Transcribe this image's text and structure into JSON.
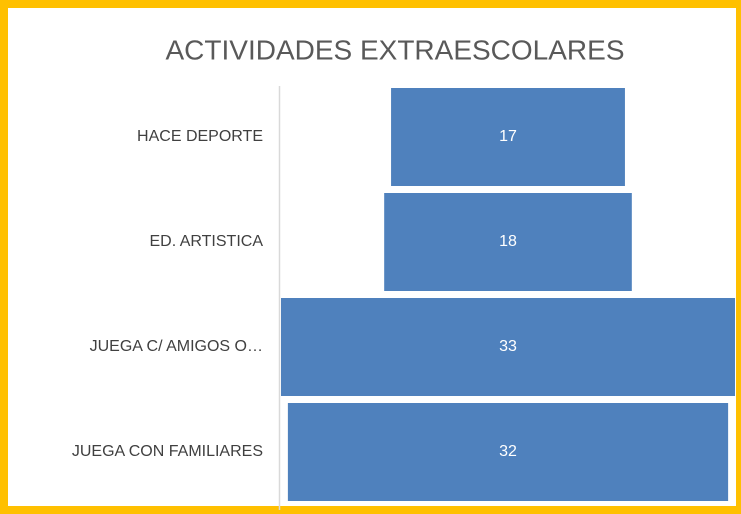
{
  "chart_data": {
    "type": "funnel",
    "title": "ACTIVIDADES EXTRAESCOLARES",
    "categories": [
      "HACE DEPORTE",
      "ED. ARTISTICA",
      "JUEGA C/ AMIGOS O…",
      "JUEGA CON FAMILIARES"
    ],
    "values": [
      17,
      18,
      33,
      32
    ],
    "color": "#4f81bd",
    "frame_color": "#ffc000"
  }
}
